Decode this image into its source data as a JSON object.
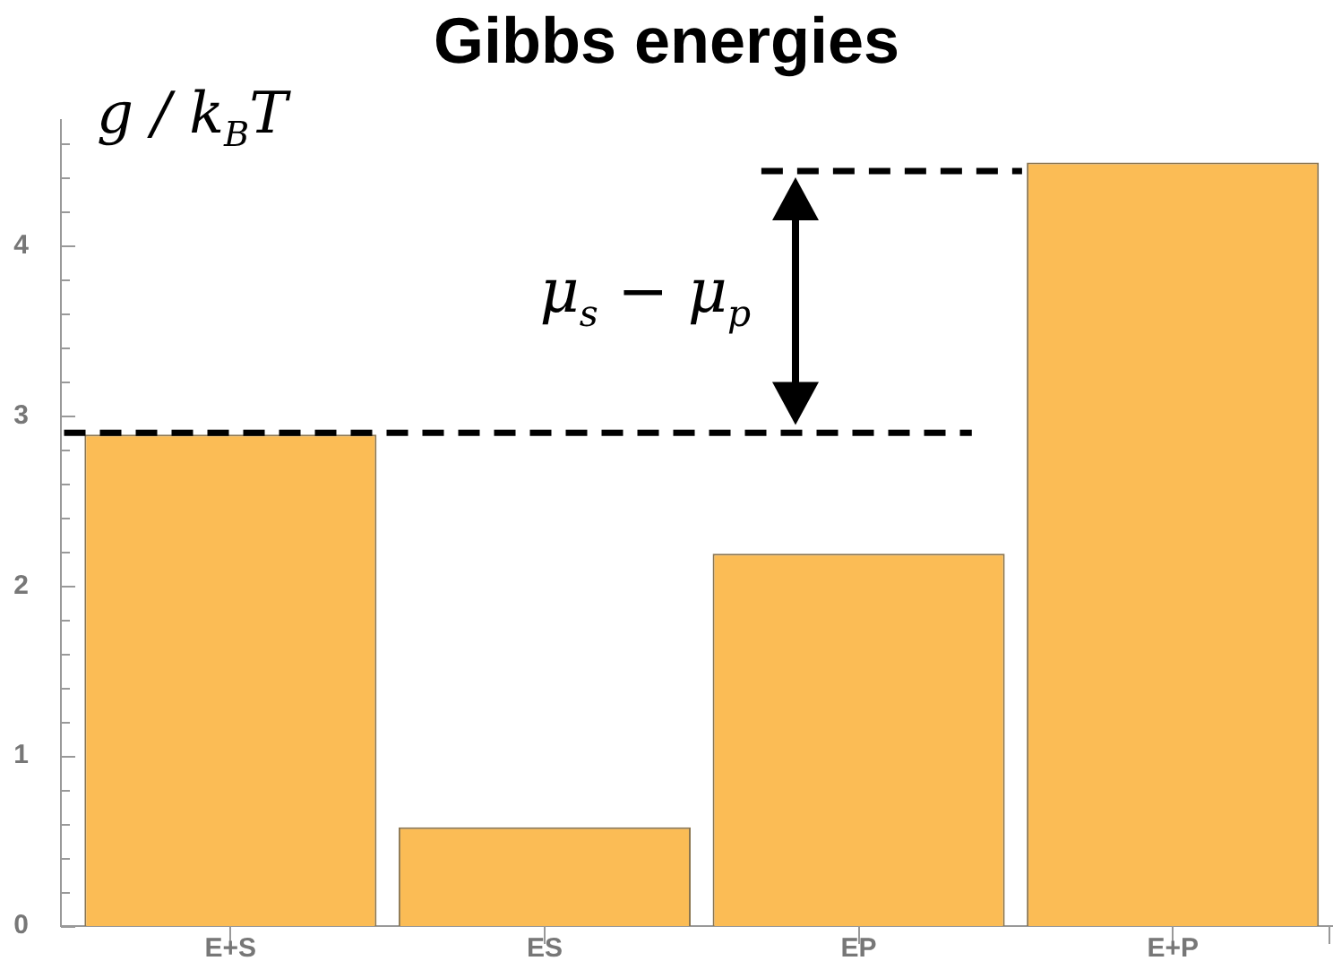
{
  "chart_data": {
    "type": "bar",
    "title": "Gibbs energies",
    "ylabel": "g / k$_{B}$T",
    "categories": [
      "E+S",
      "ES",
      "EP",
      "E+P"
    ],
    "values": [
      2.89,
      0.58,
      2.19,
      4.49
    ],
    "color": "#fbbc55",
    "ylim": [
      0,
      4.74
    ],
    "yticks": [
      0,
      {
        "value": 0.2,
        "label": null
      },
      {
        "value": 0.4,
        "label": null
      },
      {
        "value": 0.6,
        "label": null
      },
      {
        "value": 0.8,
        "label": null
      },
      1,
      {
        "value": 1.2,
        "label": null
      },
      {
        "value": 1.4,
        "label": null
      },
      {
        "value": 1.6,
        "label": null
      },
      {
        "value": 1.8,
        "label": null
      },
      2,
      {
        "value": 2.2,
        "label": null
      },
      {
        "value": 2.4,
        "label": null
      },
      {
        "value": 2.6,
        "label": null
      },
      {
        "value": 2.8,
        "label": null
      },
      3,
      {
        "value": 3.2,
        "label": null
      },
      {
        "value": 3.4,
        "label": null
      },
      {
        "value": 3.6,
        "label": null
      },
      {
        "value": 3.8,
        "label": null
      },
      4,
      {
        "value": 4.2,
        "label": null
      },
      {
        "value": 4.4,
        "label": null
      },
      {
        "value": 4.6,
        "label": null
      }
    ],
    "ref_lines": [
      {
        "axis": "y",
        "value": 2.9,
        "color": "#000000",
        "line_style": "dashed"
      },
      {
        "axis": "y",
        "value": 4.44,
        "color": "#000000",
        "line_style": "dashed"
      }
    ],
    "annotations": [
      "μ$_{s}$ − μ$_{p}$"
    ],
    "grid": false,
    "legend": false
  }
}
